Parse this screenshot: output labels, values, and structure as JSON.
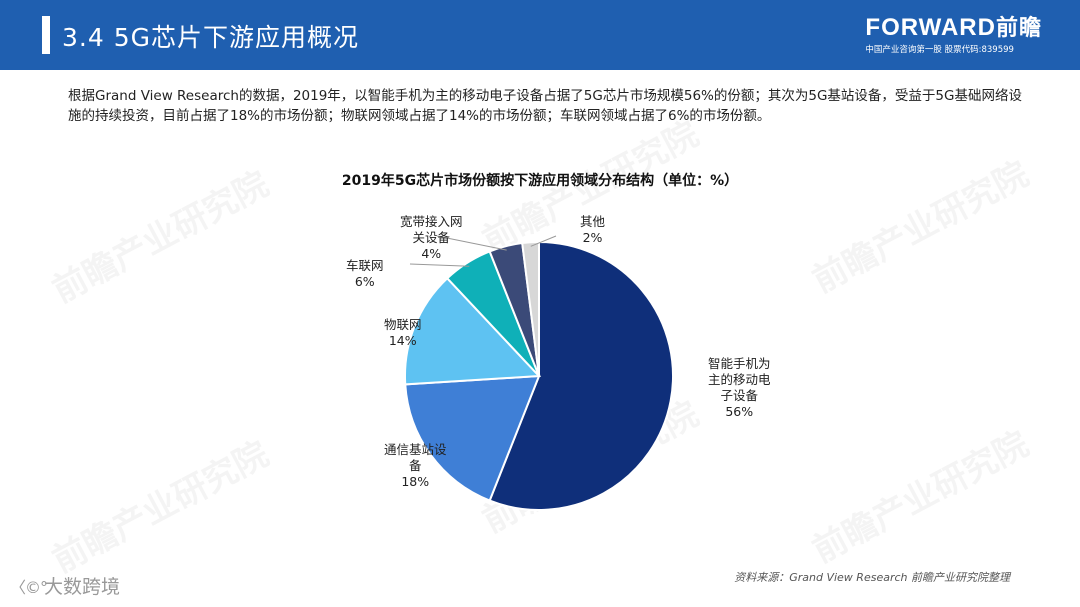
{
  "header": {
    "title": "3.4 5G芯片下游应用概况",
    "brand_latin": "FORWARD",
    "brand_cn": "前瞻",
    "tagline": "中国产业咨询第一股 股票代码:839599"
  },
  "intro_text": "根据Grand View Research的数据，2019年，以智能手机为主的移动电子设备占据了5G芯片市场规模56%的份额；其次为5G基站设备，受益于5G基础网络设施的持续投资，目前占据了18%的市场份额；物联网领域占据了14%的市场份额；车联网领域占据了6%的市场份额。",
  "chart_data": {
    "type": "pie",
    "title": "2019年5G芯片市场份额按下游应用领域分布结构（单位：%）",
    "unit": "%",
    "slices": [
      {
        "name": "智能手机为主的移动电子设备",
        "label_lines": [
          "智能手机为",
          "主的移动电",
          "子设备"
        ],
        "value": 56,
        "value_label": "56%",
        "color": "#0f2f7a"
      },
      {
        "name": "通信基站设备",
        "label_lines": [
          "通信基站设",
          "备"
        ],
        "value": 18,
        "value_label": "18%",
        "color": "#3f7fd6"
      },
      {
        "name": "物联网",
        "label_lines": [
          "物联网"
        ],
        "value": 14,
        "value_label": "14%",
        "color": "#5ec2f2"
      },
      {
        "name": "车联网",
        "label_lines": [
          "车联网"
        ],
        "value": 6,
        "value_label": "6%",
        "color": "#0fb0b8"
      },
      {
        "name": "宽带接入网关设备",
        "label_lines": [
          "宽带接入网",
          "关设备"
        ],
        "value": 4,
        "value_label": "4%",
        "color": "#3b4a78"
      },
      {
        "name": "其他",
        "label_lines": [
          "其他"
        ],
        "value": 2,
        "value_label": "2%",
        "color": "#d7d7d7"
      }
    ],
    "legend": "none"
  },
  "source": "资料来源：Grand View Research 前瞻产业研究院整理",
  "watermark": "前瞻产业研究院",
  "footer_logo": {
    "icon": "大数跨境-logo-icon",
    "text": "大数跨境"
  }
}
